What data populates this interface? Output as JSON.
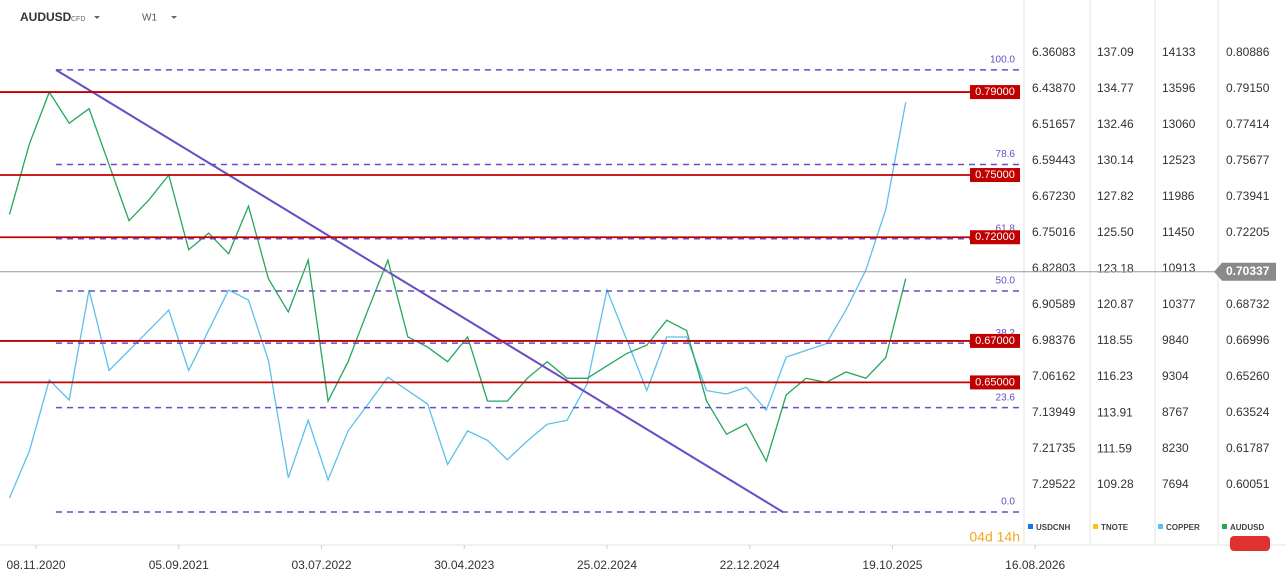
{
  "chart_data": {
    "type": "line",
    "symbol": "AUDUSD",
    "instrument_type": "CFD",
    "timeframe": "W1",
    "countdown": "04d 14h",
    "x": [
      "2020-09-13",
      "2020-10-25",
      "2020-12-06",
      "2021-01-17",
      "2021-02-28",
      "2021-04-11",
      "2021-05-23",
      "2021-07-04",
      "2021-08-15",
      "2021-09-26",
      "2021-11-07",
      "2021-12-19",
      "2022-01-30",
      "2022-03-13",
      "2022-04-24",
      "2022-06-05",
      "2022-07-17",
      "2022-08-28",
      "2022-10-09",
      "2022-11-20",
      "2023-01-01",
      "2023-02-12",
      "2023-03-26",
      "2023-05-07",
      "2023-06-18",
      "2023-07-30",
      "2023-09-10",
      "2023-10-22",
      "2023-12-03",
      "2024-01-14",
      "2024-02-25",
      "2024-04-07",
      "2024-05-19",
      "2024-06-30",
      "2024-08-11",
      "2024-09-22",
      "2024-11-03",
      "2024-12-15",
      "2025-01-26",
      "2025-03-09",
      "2025-04-20",
      "2025-06-01",
      "2025-07-13",
      "2025-08-24",
      "2025-10-05",
      "2025-11-16"
    ],
    "xlim": [
      "2020-08-24",
      "2026-07-15"
    ],
    "xticks": [
      {
        "value": "2020-11-08",
        "label": "08.11.2020"
      },
      {
        "value": "2021-09-05",
        "label": "05.09.2021"
      },
      {
        "value": "2022-07-03",
        "label": "03.07.2022"
      },
      {
        "value": "2023-04-30",
        "label": "30.04.2023"
      },
      {
        "value": "2024-02-25",
        "label": "25.02.2024"
      },
      {
        "value": "2024-12-22",
        "label": "22.12.2024"
      },
      {
        "value": "2025-10-19",
        "label": "19.10.2025"
      },
      {
        "value": "2026-08-16",
        "label": "16.08.2026"
      }
    ],
    "series": [
      {
        "name": "USDCNH",
        "color": "#1a73e8",
        "ylim": [
          7.425,
          6.2462
        ],
        "yticks": [
          6.36083,
          {
            "value": 6.4387,
            "label": "6.43870"
          },
          6.51657,
          6.59443,
          {
            "value": 6.6723,
            "label": "6.67230"
          },
          6.75016,
          6.82803,
          6.90589,
          6.98376,
          7.06162,
          7.13949,
          7.21735,
          7.29522
        ]
      },
      {
        "name": "TNOTE",
        "color": "#f5c518",
        "ylim": [
          105.42,
          140.5
        ],
        "yticks": [
          137.09,
          134.77,
          132.46,
          130.14,
          127.82,
          {
            "value": 125.5,
            "label": "125.50"
          },
          123.18,
          120.87,
          118.55,
          116.23,
          113.91,
          111.59,
          109.28
        ]
      },
      {
        "name": "COPPER",
        "color": "#5bc0eb",
        "ylim": [
          6799,
          14923
        ],
        "yticks": [
          14133,
          13596,
          13060,
          12523,
          11986,
          11450,
          10913,
          10377,
          9840,
          9304,
          8767,
          8230,
          7694
        ],
        "values": [
          7500,
          8200,
          9260,
          8960,
          10600,
          9400,
          9700,
          10000,
          10300,
          9400,
          10000,
          10600,
          10450,
          9550,
          7800,
          8660,
          7770,
          8500,
          8900,
          9300,
          9100,
          8900,
          8000,
          8500,
          8360,
          8070,
          8350,
          8600,
          8660,
          9200,
          10600,
          9850,
          9100,
          9900,
          9900,
          9100,
          9050,
          9150,
          8810,
          9600,
          9700,
          9800,
          10300,
          10900,
          11800,
          13400
        ]
      },
      {
        "name": "AUDUSD",
        "color": "#26a65b",
        "ylim": [
          0.5716,
          0.8344
        ],
        "yticks": [
          0.80886,
          {
            "value": 0.7915,
            "label": "0.79150"
          },
          0.77414,
          0.75677,
          0.73941,
          0.72205,
          0.68732,
          0.66996,
          {
            "value": 0.6526,
            "label": "0.65260"
          },
          0.63524,
          0.61787,
          0.60051
        ],
        "last_price": 0.70337,
        "values": [
          0.731,
          0.765,
          0.79,
          0.775,
          0.782,
          0.755,
          0.728,
          0.738,
          0.75,
          0.714,
          0.722,
          0.712,
          0.735,
          0.7,
          0.684,
          0.709,
          0.641,
          0.66,
          0.685,
          0.709,
          0.672,
          0.667,
          0.66,
          0.672,
          0.641,
          0.641,
          0.652,
          0.66,
          0.652,
          0.652,
          0.658,
          0.664,
          0.668,
          0.68,
          0.675,
          0.641,
          0.625,
          0.63,
          0.612,
          0.644,
          0.652,
          0.65,
          0.655,
          0.652,
          0.662,
          0.7
        ]
      }
    ],
    "levels": [
      {
        "value": 0.79,
        "label": "0.79000"
      },
      {
        "value": 0.75,
        "label": "0.75000"
      },
      {
        "value": 0.72,
        "label": "0.72000"
      },
      {
        "value": 0.67,
        "label": "0.67000"
      },
      {
        "value": 0.65,
        "label": "0.65000"
      }
    ],
    "level_color": "#c00000",
    "fib": {
      "high": 0.8007,
      "low": 0.5875,
      "start": "2020-12-20",
      "color": "#6a4bc4",
      "levels": [
        {
          "value": 100,
          "label": "100.0"
        },
        {
          "value": 78.6,
          "label": "78.6"
        },
        {
          "value": 61.8,
          "label": "61.8"
        },
        {
          "value": 50,
          "label": "50.0"
        },
        {
          "value": 38.2,
          "label": "38.2"
        },
        {
          "value": 23.6,
          "label": "23.6"
        },
        {
          "value": 0,
          "label": "0.0"
        }
      ]
    },
    "trendline": {
      "x": [
        "2020-12-20",
        "2025-03-02"
      ],
      "values": [
        0.8007,
        0.5875
      ],
      "color": "#6a4bc4"
    }
  }
}
